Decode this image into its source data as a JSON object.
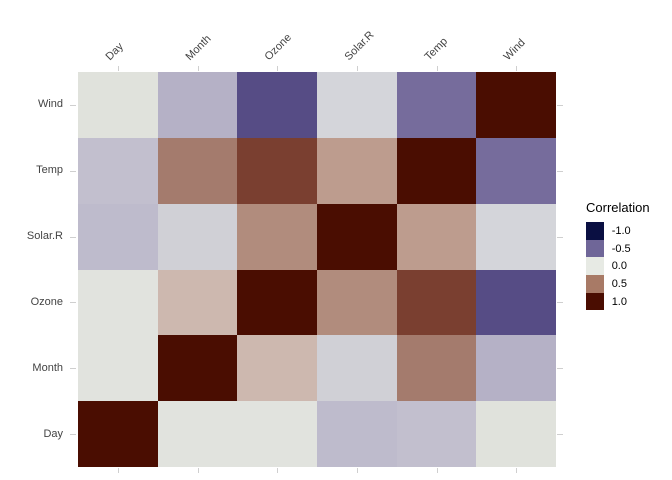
{
  "chart_data": {
    "type": "heatmap",
    "title": "",
    "x_axis_position": "top",
    "x_categories": [
      "Day",
      "Month",
      "Ozone",
      "Solar.R",
      "Temp",
      "Wind"
    ],
    "y_categories": [
      "Wind",
      "Temp",
      "Solar.R",
      "Ozone",
      "Month",
      "Day"
    ],
    "grid": false,
    "legend": {
      "title": "Correlation",
      "position": "right",
      "entries": [
        {
          "label": "-1.0",
          "color": "#0a0f42"
        },
        {
          "label": "-0.5",
          "color": "#6f6698"
        },
        {
          "label": "0.0",
          "color": "#e7eae4"
        },
        {
          "label": "0.5",
          "color": "#a87a66"
        },
        {
          "label": "1.0",
          "color": "#4a0d01"
        }
      ]
    },
    "values": [
      [
        0.03,
        -0.18,
        -0.6,
        -0.06,
        -0.46,
        1.0
      ],
      [
        -0.13,
        0.42,
        0.7,
        0.28,
        1.0,
        -0.46
      ],
      [
        -0.15,
        -0.08,
        0.35,
        1.0,
        0.28,
        -0.06
      ],
      [
        -0.01,
        0.16,
        1.0,
        0.35,
        0.7,
        -0.6
      ],
      [
        -0.01,
        1.0,
        0.16,
        -0.08,
        0.42,
        -0.18
      ],
      [
        1.0,
        -0.01,
        -0.01,
        -0.15,
        -0.13,
        0.03
      ]
    ],
    "cell_colors": [
      [
        "#e0e2dc",
        "#b5b1c6",
        "#564c85",
        "#d4d5da",
        "#766c9c",
        "#4a0d01"
      ],
      [
        "#c2bfce",
        "#a47b6d",
        "#7a3f30",
        "#bd9c8e",
        "#4a0d01",
        "#766c9c"
      ],
      [
        "#bebbcc",
        "#d0d0d6",
        "#b18c7d",
        "#4a0d01",
        "#bd9c8e",
        "#d4d5da"
      ],
      [
        "#e1e3de",
        "#cdb8af",
        "#4a0d01",
        "#b18c7d",
        "#7a3f30",
        "#564c85"
      ],
      [
        "#e1e3de",
        "#4a0d01",
        "#cdb8af",
        "#d0d0d6",
        "#a47b6d",
        "#b5b1c6"
      ],
      [
        "#4a0d01",
        "#e1e3de",
        "#e1e3de",
        "#bebbcc",
        "#c2bfce",
        "#e0e2dc"
      ]
    ]
  },
  "colors": {
    "background": "#ffffff",
    "axis_text": "#434343",
    "tick": "#cfcfcf",
    "legend_text": "#000000"
  }
}
